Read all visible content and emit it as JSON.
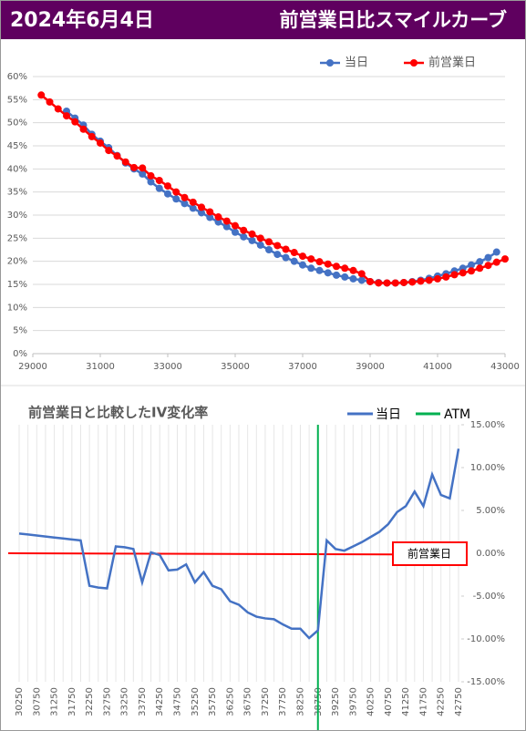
{
  "header": {
    "date": "2024年6月4日",
    "title": "前営業日比スマイルカーブ"
  },
  "chart_data": [
    {
      "type": "line",
      "xlim": [
        29000,
        43000
      ],
      "xticks": [
        29000,
        31000,
        33000,
        35000,
        37000,
        39000,
        41000,
        43000
      ],
      "ylim": [
        0,
        60
      ],
      "yticks": [
        {
          "value": 0,
          "label": "0%"
        },
        {
          "value": 5,
          "label": "5%"
        },
        {
          "value": 10,
          "label": "10%"
        },
        {
          "value": 15,
          "label": "15%"
        },
        {
          "value": 20,
          "label": "20%"
        },
        {
          "value": 25,
          "label": "25%"
        },
        {
          "value": 30,
          "label": "30%"
        },
        {
          "value": 35,
          "label": "35%"
        },
        {
          "value": 40,
          "label": "40%"
        },
        {
          "value": 45,
          "label": "45%"
        },
        {
          "value": 50,
          "label": "50%"
        },
        {
          "value": 55,
          "label": "55%"
        },
        {
          "value": 60,
          "label": "60%"
        }
      ],
      "grid": true,
      "legend": "top",
      "series": [
        {
          "name": "当日",
          "color": "#4472c4",
          "x": [
            30000,
            30250,
            30500,
            30750,
            31000,
            31250,
            31500,
            31750,
            32000,
            32250,
            32500,
            32750,
            33000,
            33250,
            33500,
            33750,
            34000,
            34250,
            34500,
            34750,
            35000,
            35250,
            35500,
            35750,
            36000,
            36250,
            36500,
            36750,
            37000,
            37250,
            37500,
            37750,
            38000,
            38250,
            38500,
            38750,
            39000,
            39250,
            39500,
            39750,
            40000,
            40250,
            40500,
            40750,
            41000,
            41250,
            41500,
            41750,
            42000,
            42250,
            42500,
            42750
          ],
          "values": [
            52.5,
            51.0,
            49.5,
            47.5,
            46.0,
            44.6,
            42.9,
            41.3,
            40.0,
            38.9,
            37.2,
            35.8,
            34.6,
            33.5,
            32.5,
            31.5,
            30.5,
            29.5,
            28.5,
            27.5,
            26.3,
            25.3,
            24.5,
            23.5,
            22.5,
            21.5,
            20.8,
            20.0,
            19.2,
            18.5,
            18.0,
            17.5,
            17.0,
            16.6,
            16.2,
            15.9,
            15.6,
            15.4,
            15.3,
            15.3,
            15.4,
            15.6,
            15.9,
            16.3,
            16.8,
            17.3,
            17.9,
            18.5,
            19.2,
            19.9,
            20.8,
            22.0
          ]
        },
        {
          "name": "前営業日",
          "color": "#ff0000",
          "x": [
            29250,
            29500,
            29750,
            30000,
            30250,
            30500,
            30750,
            31000,
            31250,
            31500,
            31750,
            32000,
            32250,
            32500,
            32750,
            33000,
            33250,
            33500,
            33750,
            34000,
            34250,
            34500,
            34750,
            35000,
            35250,
            35500,
            35750,
            36000,
            36250,
            36500,
            36750,
            37000,
            37250,
            37500,
            37750,
            38000,
            38250,
            38500,
            38750,
            39000,
            39250,
            39500,
            39750,
            40000,
            40250,
            40500,
            40750,
            41000,
            41250,
            41500,
            41750,
            42000,
            42250,
            42500,
            42750,
            43000
          ],
          "values": [
            56.0,
            54.5,
            53.0,
            51.5,
            50.2,
            48.6,
            47.0,
            45.6,
            44.0,
            42.8,
            41.5,
            40.3,
            40.2,
            38.5,
            37.5,
            36.3,
            35.0,
            33.8,
            32.8,
            31.7,
            30.7,
            29.6,
            28.7,
            27.7,
            26.7,
            25.9,
            25.0,
            24.2,
            23.4,
            22.6,
            21.9,
            21.1,
            20.5,
            19.9,
            19.4,
            18.9,
            18.5,
            18.0,
            17.3,
            15.6,
            15.3,
            15.3,
            15.3,
            15.4,
            15.5,
            15.7,
            15.9,
            16.2,
            16.6,
            17.1,
            17.5,
            17.9,
            18.5,
            19.1,
            19.8,
            20.5
          ]
        }
      ]
    },
    {
      "type": "category_line",
      "title": "前営業日と比較したIV変化率",
      "categories": [
        "30250",
        null,
        "30750",
        null,
        "31250",
        null,
        "31750",
        null,
        "32250",
        null,
        "32750",
        null,
        "33250",
        null,
        "33750",
        null,
        "34250",
        null,
        "34750",
        null,
        "35250",
        null,
        "35750",
        null,
        "36250",
        null,
        "36750",
        null,
        "37250",
        null,
        "37750",
        null,
        "38250",
        null,
        "38750",
        null,
        "39250",
        null,
        "39750",
        null,
        "40250",
        null,
        "40750",
        null,
        "41250",
        null,
        "41750",
        null,
        "42250",
        null,
        "42750"
      ],
      "y2lim": [
        -15,
        15
      ],
      "y2ticks": [
        {
          "value": 15,
          "label": "15.00%"
        },
        {
          "value": 10,
          "label": "10.00%"
        },
        {
          "value": 5,
          "label": "5.00%"
        },
        {
          "value": 0,
          "label": "0.00%"
        },
        {
          "value": -5,
          "label": "-5.00%"
        },
        {
          "value": -10,
          "label": "-10.00%"
        },
        {
          "value": -15,
          "label": "-15.00%"
        }
      ],
      "series": [
        {
          "name": "当日",
          "color": "#4472c4",
          "axis": "y2",
          "values": [
            2.3,
            2.19,
            2.07,
            1.96,
            1.84,
            1.73,
            1.61,
            1.5,
            -3.8,
            -4.0,
            -4.1,
            0.8,
            0.7,
            0.5,
            -3.4,
            0.1,
            -0.2,
            -2.0,
            -1.9,
            -1.3,
            -3.4,
            -2.2,
            -3.8,
            -4.2,
            -5.6,
            -6.0,
            -6.9,
            -7.4,
            -7.6,
            -7.7,
            -8.3,
            -8.8,
            -8.8,
            -9.9,
            -9.0,
            1.5,
            0.5,
            0.3,
            0.8,
            1.3,
            1.9,
            2.5,
            3.4,
            4.8,
            5.5,
            7.2,
            5.5,
            9.2,
            6.8,
            6.4,
            12.2
          ]
        }
      ],
      "atm": {
        "name": "ATM",
        "color": "#00b050",
        "category_index": 34
      },
      "reference_line": {
        "name": "前営業日",
        "color": "#ff0000",
        "value": 0
      }
    }
  ]
}
